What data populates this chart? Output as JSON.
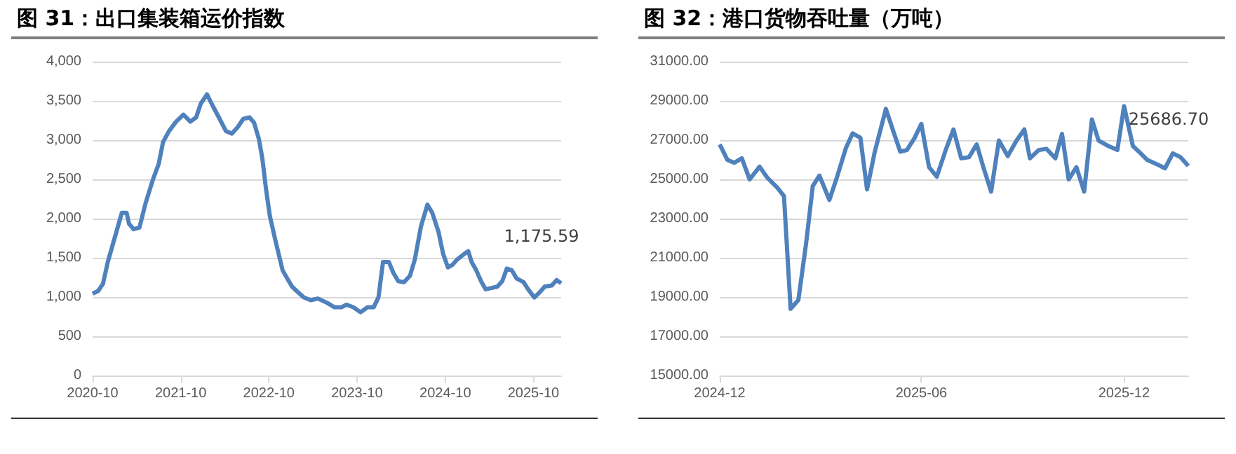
{
  "chart_data": [
    {
      "type": "line",
      "title": "图 31：出口集装箱运价指数",
      "color": "#4f81bd",
      "grid": "y",
      "marker": "none",
      "x": [
        "2020-10-01",
        "2020-10-24",
        "2020-11-13",
        "2020-12-03",
        "2021-01-01",
        "2021-01-30",
        "2021-02-19",
        "2021-03-01",
        "2021-03-20",
        "2021-04-13",
        "2021-05-08",
        "2021-06-07",
        "2021-07-02",
        "2021-07-20",
        "2021-08-14",
        "2021-09-12",
        "2021-10-12",
        "2021-11-10",
        "2021-12-04",
        "2021-12-23",
        "2022-01-18",
        "2022-02-06",
        "2022-03-08",
        "2022-04-06",
        "2022-05-01",
        "2022-05-25",
        "2022-06-17",
        "2022-07-13",
        "2022-08-01",
        "2022-08-21",
        "2022-09-04",
        "2022-09-19",
        "2022-10-05",
        "2022-10-28",
        "2022-11-27",
        "2022-12-16",
        "2023-01-05",
        "2023-01-24",
        "2023-02-23",
        "2023-03-24",
        "2023-04-22",
        "2023-05-31",
        "2023-06-30",
        "2023-07-29",
        "2023-08-18",
        "2023-09-16",
        "2023-10-16",
        "2023-11-14",
        "2023-12-09",
        "2023-12-29",
        "2024-01-17",
        "2024-02-10",
        "2024-02-29",
        "2024-03-20",
        "2024-04-13",
        "2024-05-08",
        "2024-05-28",
        "2024-06-22",
        "2024-07-19",
        "2024-08-08",
        "2024-09-03",
        "2024-09-22",
        "2024-10-12",
        "2024-10-31",
        "2024-11-20",
        "2024-12-19",
        "2025-01-04",
        "2025-01-18",
        "2025-02-06",
        "2025-02-26",
        "2025-03-17",
        "2025-04-16",
        "2025-05-05",
        "2025-05-25",
        "2025-06-13",
        "2025-07-03",
        "2025-07-23",
        "2025-08-21",
        "2025-09-09",
        "2025-10-05",
        "2025-10-28",
        "2025-11-17",
        "2025-12-16",
        "2026-01-05",
        "2026-01-24"
      ],
      "values": [
        1043,
        1078,
        1169,
        1447,
        1760,
        2073,
        2073,
        1934,
        1864,
        1885,
        2191,
        2490,
        2699,
        2977,
        3117,
        3235,
        3325,
        3235,
        3290,
        3464,
        3583,
        3464,
        3290,
        3117,
        3082,
        3165,
        3270,
        3290,
        3221,
        3012,
        2769,
        2386,
        2038,
        1725,
        1343,
        1238,
        1134,
        1078,
        995,
        960,
        981,
        925,
        870,
        870,
        904,
        870,
        807,
        870,
        870,
        995,
        1447,
        1447,
        1308,
        1203,
        1190,
        1273,
        1482,
        1899,
        2177,
        2073,
        1830,
        1551,
        1377,
        1412,
        1482,
        1551,
        1586,
        1447,
        1343,
        1203,
        1099,
        1120,
        1134,
        1203,
        1363,
        1343,
        1238,
        1190,
        1099,
        995,
        1064,
        1134,
        1148,
        1217,
        1175.59
      ],
      "xlim": [
        "2020-10-01",
        "2026-01-24"
      ],
      "xticks": [
        "2020-10",
        "2021-10",
        "2022-10",
        "2023-10",
        "2024-10",
        "2025-10"
      ],
      "ylim": [
        0,
        4000
      ],
      "yticks": [
        0,
        500,
        {
          "value": 1000,
          "label": "1,000"
        },
        {
          "value": 1500,
          "label": "1,500"
        },
        {
          "value": 2000,
          "label": "2,000"
        },
        {
          "value": 2500,
          "label": "2,500"
        },
        {
          "value": 3000,
          "label": "3,000"
        },
        {
          "value": 3500,
          "label": "3,500"
        },
        {
          "value": 4000,
          "label": "4,000"
        }
      ],
      "annotations": [
        {
          "text": "1,175.59",
          "x": "2026-01-24",
          "y": 1175.59
        }
      ]
    },
    {
      "type": "line",
      "title": "图 32：港口货物吞吐量（万吨）",
      "color": "#4f81bd",
      "grid": "y",
      "marker": "none",
      "x": [
        "2024-12-01",
        "2024-12-08",
        "2024-12-14",
        "2024-12-21",
        "2024-12-28",
        "2025-01-06",
        "2025-01-13",
        "2025-01-22",
        "2025-01-28",
        "2025-02-03",
        "2025-02-10",
        "2025-02-17",
        "2025-02-23",
        "2025-03-01",
        "2025-03-10",
        "2025-03-17",
        "2025-03-25",
        "2025-03-31",
        "2025-04-07",
        "2025-04-13",
        "2025-04-20",
        "2025-04-30",
        "2025-05-07",
        "2025-05-13",
        "2025-05-19",
        "2025-05-26",
        "2025-06-01",
        "2025-06-08",
        "2025-06-15",
        "2025-06-23",
        "2025-06-30",
        "2025-07-07",
        "2025-07-14",
        "2025-07-21",
        "2025-07-27",
        "2025-08-03",
        "2025-08-10",
        "2025-08-18",
        "2025-08-26",
        "2025-09-02",
        "2025-09-07",
        "2025-09-15",
        "2025-09-22",
        "2025-09-30",
        "2025-10-06",
        "2025-10-12",
        "2025-10-19",
        "2025-10-26",
        "2025-11-02",
        "2025-11-08",
        "2025-11-17",
        "2025-11-25",
        "2025-12-01",
        "2025-12-09",
        "2025-12-16",
        "2025-12-22",
        "2025-12-31",
        "2026-01-07",
        "2026-01-14",
        "2026-01-21",
        "2026-01-28"
      ],
      "values": [
        26781,
        25988,
        25846,
        26073,
        24997,
        25648,
        25082,
        24572,
        24147,
        18398,
        18851,
        21740,
        24657,
        25195,
        23949,
        25138,
        26611,
        27347,
        27120,
        24487,
        26412,
        28593,
        27403,
        26412,
        26496,
        27120,
        27828,
        25619,
        25138,
        26496,
        27544,
        26073,
        26129,
        26781,
        25619,
        24374,
        26979,
        26186,
        26979,
        27544,
        26073,
        26496,
        26554,
        26073,
        27319,
        24997,
        25619,
        24374,
        28054,
        26979,
        26696,
        26496,
        28735,
        26696,
        26327,
        25988,
        25761,
        25563,
        26327,
        26129,
        25686.7
      ],
      "xlim": [
        "2024-12-01",
        "2026-01-28"
      ],
      "xticks": [
        "2024-12",
        "2025-06",
        "2025-12"
      ],
      "ylim": [
        15000,
        31000
      ],
      "yticks": [
        {
          "value": 15000,
          "label": "15000.00"
        },
        {
          "value": 17000,
          "label": "17000.00"
        },
        {
          "value": 19000,
          "label": "19000.00"
        },
        {
          "value": 21000,
          "label": "21000.00"
        },
        {
          "value": 23000,
          "label": "23000.00"
        },
        {
          "value": 25000,
          "label": "25000.00"
        },
        {
          "value": 27000,
          "label": "27000.00"
        },
        {
          "value": 29000,
          "label": "29000.00"
        },
        {
          "value": 31000,
          "label": "31000.00"
        }
      ],
      "annotations": [
        {
          "text": "25686.70",
          "x": "2026-01-28",
          "y": 25686.7
        }
      ]
    }
  ]
}
